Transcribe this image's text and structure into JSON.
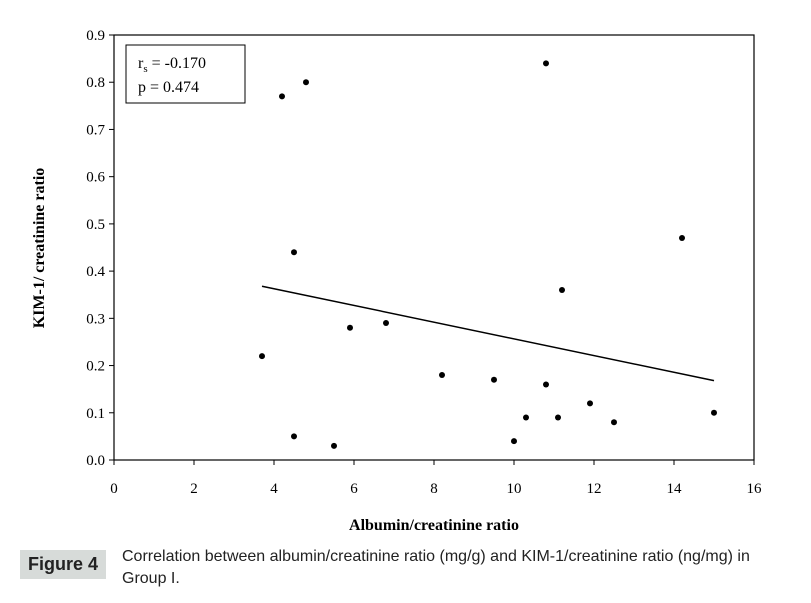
{
  "chart_data": {
    "type": "scatter",
    "xlabel": "Albumin/creatinine ratio",
    "ylabel": "KIM-1/ creatinine ratio",
    "xlim": [
      0,
      16
    ],
    "ylim": [
      0,
      0.9
    ],
    "xticks": [
      "0",
      "2",
      "4",
      "6",
      "8",
      "10",
      "12",
      "14",
      "16"
    ],
    "yticks": [
      "0.0",
      "0.1",
      "0.2",
      "0.3",
      "0.4",
      "0.5",
      "0.6",
      "0.7",
      "0.8",
      "0.9"
    ],
    "grid": false,
    "points": [
      {
        "x": 3.7,
        "y": 0.22
      },
      {
        "x": 4.2,
        "y": 0.77
      },
      {
        "x": 4.5,
        "y": 0.44
      },
      {
        "x": 4.5,
        "y": 0.05
      },
      {
        "x": 4.8,
        "y": 0.8
      },
      {
        "x": 5.5,
        "y": 0.03
      },
      {
        "x": 5.9,
        "y": 0.28
      },
      {
        "x": 6.8,
        "y": 0.29
      },
      {
        "x": 8.2,
        "y": 0.18
      },
      {
        "x": 9.5,
        "y": 0.17
      },
      {
        "x": 10.0,
        "y": 0.04
      },
      {
        "x": 10.3,
        "y": 0.09
      },
      {
        "x": 10.8,
        "y": 0.84
      },
      {
        "x": 10.8,
        "y": 0.16
      },
      {
        "x": 11.1,
        "y": 0.09
      },
      {
        "x": 11.2,
        "y": 0.36
      },
      {
        "x": 11.9,
        "y": 0.12
      },
      {
        "x": 12.5,
        "y": 0.08
      },
      {
        "x": 14.2,
        "y": 0.47
      },
      {
        "x": 15.0,
        "y": 0.1
      }
    ],
    "trendline": {
      "x": [
        3.7,
        15.0
      ],
      "y": [
        0.368,
        0.168
      ]
    },
    "annotation": {
      "rs_label": "r",
      "rs_sub": "s",
      "rs_value": " = -0.170",
      "p_text": "p = 0.474"
    }
  },
  "caption": {
    "label": "Figure 4",
    "text": "Correlation between albumin/creatinine ratio (mg/g) and KIM-1/creatinine ratio (ng/mg) in Group I."
  }
}
